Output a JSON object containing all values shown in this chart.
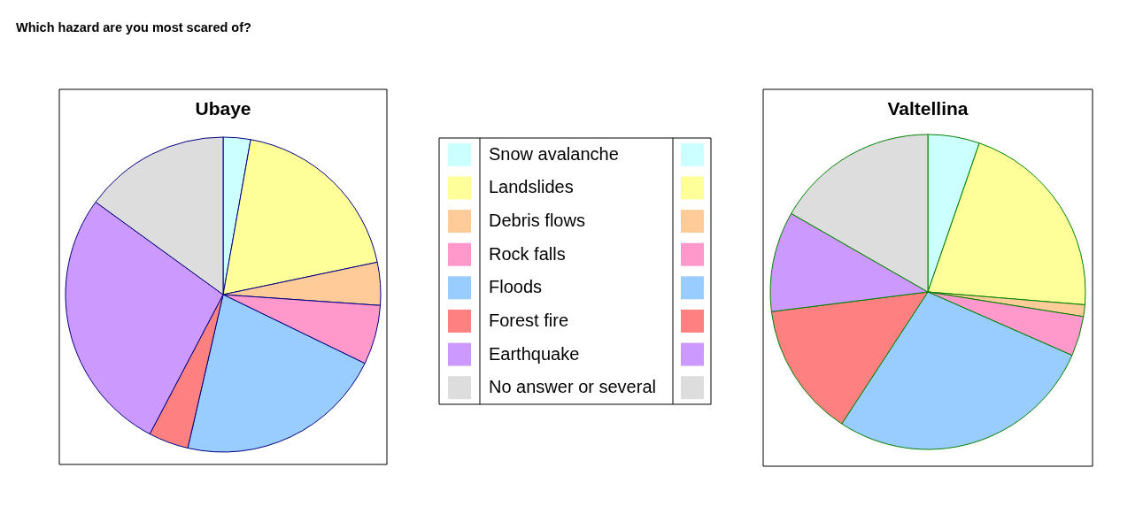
{
  "chart_data": {
    "type": "pie",
    "title": "Which hazard are you most scared of?",
    "categories": [
      "Snow avalanche",
      "Landslides",
      "Debris flows",
      "Rock falls",
      "Floods",
      "Forest fire",
      "Earthquake",
      "No answer or several"
    ],
    "colors": [
      "#ccffff",
      "#ffff99",
      "#ffcc99",
      "#ff99cc",
      "#99ccff",
      "#ff8080",
      "#cc99ff",
      "#dddddd"
    ],
    "series": [
      {
        "name": "Ubaye",
        "values": [
          2.8,
          18.9,
          4.4,
          6.1,
          21.4,
          4.1,
          27.3,
          15.0
        ]
      },
      {
        "name": "Valtellina",
        "values": [
          5.3,
          21.0,
          1.2,
          4.1,
          27.6,
          13.8,
          10.3,
          16.7
        ]
      }
    ],
    "legend": "center"
  }
}
